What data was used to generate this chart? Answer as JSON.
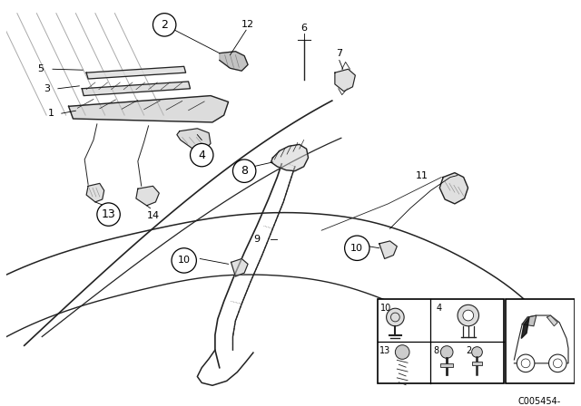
{
  "bg_color": "#ffffff",
  "diagram_code": "C005454-",
  "line_color": "#222222",
  "gray": "#888888"
}
